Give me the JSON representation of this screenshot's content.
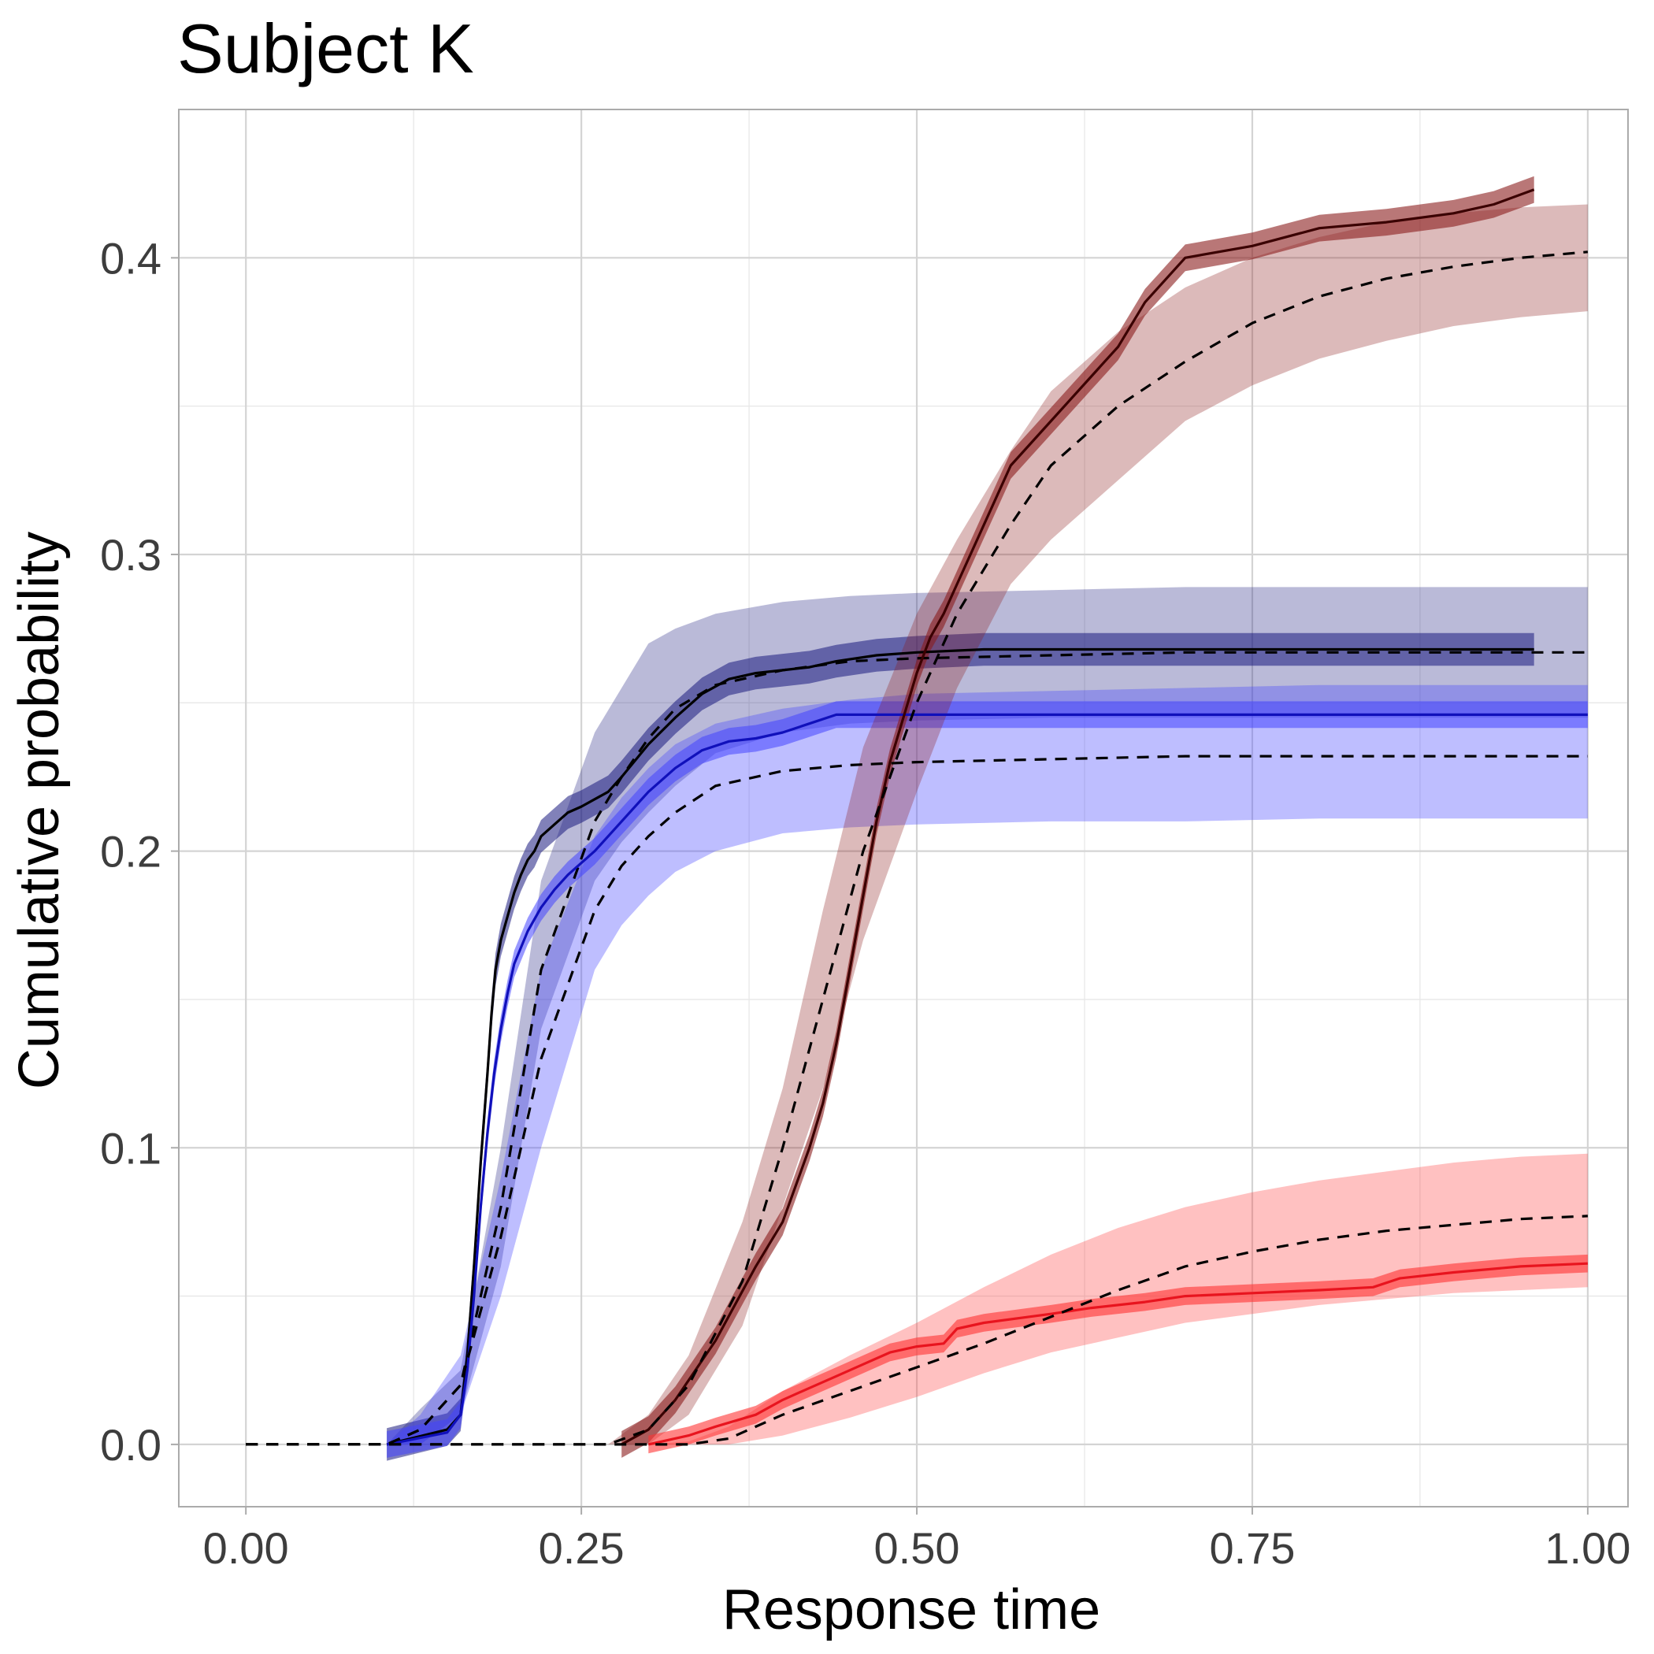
{
  "chart_data": {
    "type": "line",
    "title": "Subject K",
    "xlabel": "Response time",
    "ylabel": "Cumulative probability",
    "xlim": [
      -0.05,
      1.03
    ],
    "ylim": [
      -0.021,
      0.45
    ],
    "x_ticks": [
      0.0,
      0.25,
      0.5,
      0.75,
      1.0
    ],
    "x_tick_labels": [
      "0.00",
      "0.25",
      "0.50",
      "0.75",
      "1.00"
    ],
    "y_ticks": [
      0.0,
      0.1,
      0.2,
      0.3,
      0.4
    ],
    "y_tick_labels": [
      "0.0",
      "0.1",
      "0.2",
      "0.3",
      "0.4"
    ],
    "grid": true,
    "legend": "none",
    "colors": {
      "navy_band": "#1a1a7f",
      "blue_band": "#4444ff",
      "maroon_band": "#8b1c1c",
      "red_band": "#ff3333",
      "navy_line": "#000000",
      "blue_line": "#1010bb",
      "maroon_line": "#3a0000",
      "red_line": "#e8141e",
      "dashed_line": "#000000"
    },
    "series": [
      {
        "style": "observed",
        "color_key": "navy_band",
        "line_color_key": "navy_line",
        "band_opacity": 0.55,
        "band_width": 0.0055,
        "x": [
          0.105,
          0.15,
          0.16,
          0.165,
          0.17,
          0.175,
          0.18,
          0.183,
          0.186,
          0.19,
          0.195,
          0.2,
          0.205,
          0.21,
          0.215,
          0.22,
          0.23,
          0.24,
          0.25,
          0.27,
          0.28,
          0.3,
          0.32,
          0.34,
          0.36,
          0.38,
          0.4,
          0.42,
          0.44,
          0.47,
          0.5,
          0.55,
          0.6,
          0.7,
          0.8,
          0.96
        ],
        "y": [
          0.0,
          0.005,
          0.01,
          0.03,
          0.06,
          0.095,
          0.125,
          0.145,
          0.16,
          0.17,
          0.178,
          0.186,
          0.192,
          0.197,
          0.2,
          0.205,
          0.209,
          0.213,
          0.215,
          0.22,
          0.225,
          0.236,
          0.245,
          0.253,
          0.258,
          0.26,
          0.261,
          0.262,
          0.264,
          0.266,
          0.267,
          0.268,
          0.268,
          0.268,
          0.268,
          0.268
        ]
      },
      {
        "style": "model",
        "color_key": "navy_band",
        "band_opacity": 0.3,
        "x": [
          0.0,
          0.105,
          0.13,
          0.16,
          0.19,
          0.22,
          0.26,
          0.28,
          0.3,
          0.32,
          0.35,
          0.4,
          0.45,
          0.5,
          0.6,
          0.7,
          0.8,
          1.0
        ],
        "y": [
          0.0,
          0.0,
          0.005,
          0.02,
          0.08,
          0.16,
          0.21,
          0.225,
          0.238,
          0.248,
          0.256,
          0.261,
          0.264,
          0.265,
          0.266,
          0.267,
          0.267,
          0.267
        ],
        "lower": [
          0.0,
          0.0,
          0.0,
          0.01,
          0.06,
          0.14,
          0.19,
          0.203,
          0.213,
          0.222,
          0.233,
          0.24,
          0.243,
          0.244,
          0.245,
          0.245,
          0.245,
          0.245
        ],
        "upper": [
          0.0,
          0.0,
          0.012,
          0.025,
          0.1,
          0.19,
          0.24,
          0.255,
          0.27,
          0.275,
          0.28,
          0.284,
          0.286,
          0.287,
          0.288,
          0.289,
          0.289,
          0.289
        ]
      },
      {
        "style": "observed",
        "color_key": "blue_band",
        "line_color_key": "blue_line",
        "band_opacity": 0.55,
        "band_width": 0.0045,
        "x": [
          0.105,
          0.15,
          0.16,
          0.165,
          0.17,
          0.175,
          0.18,
          0.185,
          0.19,
          0.195,
          0.2,
          0.21,
          0.22,
          0.23,
          0.24,
          0.26,
          0.28,
          0.3,
          0.32,
          0.34,
          0.36,
          0.38,
          0.4,
          0.42,
          0.44,
          0.5,
          0.6,
          0.8,
          1.0
        ],
        "y": [
          0.0,
          0.004,
          0.01,
          0.025,
          0.05,
          0.08,
          0.105,
          0.125,
          0.14,
          0.152,
          0.162,
          0.173,
          0.181,
          0.187,
          0.192,
          0.2,
          0.21,
          0.22,
          0.228,
          0.234,
          0.237,
          0.238,
          0.24,
          0.243,
          0.246,
          0.246,
          0.246,
          0.246,
          0.246
        ]
      },
      {
        "style": "model",
        "color_key": "blue_band",
        "band_opacity": 0.35,
        "x": [
          0.0,
          0.105,
          0.13,
          0.16,
          0.19,
          0.22,
          0.26,
          0.28,
          0.3,
          0.32,
          0.35,
          0.4,
          0.45,
          0.5,
          0.6,
          0.7,
          0.8,
          1.0
        ],
        "y": [
          0.0,
          0.0,
          0.005,
          0.02,
          0.07,
          0.13,
          0.18,
          0.195,
          0.205,
          0.213,
          0.222,
          0.227,
          0.229,
          0.23,
          0.231,
          0.232,
          0.232,
          0.232
        ],
        "lower": [
          0.0,
          0.0,
          0.0,
          0.01,
          0.05,
          0.1,
          0.16,
          0.175,
          0.185,
          0.193,
          0.2,
          0.206,
          0.208,
          0.209,
          0.21,
          0.21,
          0.211,
          0.211
        ],
        "upper": [
          0.0,
          0.0,
          0.01,
          0.03,
          0.09,
          0.16,
          0.205,
          0.218,
          0.228,
          0.236,
          0.243,
          0.248,
          0.251,
          0.253,
          0.254,
          0.255,
          0.256,
          0.256
        ]
      },
      {
        "style": "observed",
        "color_key": "maroon_band",
        "line_color_key": "maroon_line",
        "band_opacity": 0.6,
        "band_width": 0.0045,
        "x": [
          0.28,
          0.3,
          0.32,
          0.35,
          0.38,
          0.4,
          0.42,
          0.43,
          0.44,
          0.45,
          0.46,
          0.47,
          0.48,
          0.49,
          0.5,
          0.51,
          0.52,
          0.53,
          0.55,
          0.57,
          0.6,
          0.63,
          0.65,
          0.67,
          0.7,
          0.75,
          0.8,
          0.85,
          0.9,
          0.93,
          0.96
        ],
        "y": [
          0.0,
          0.005,
          0.015,
          0.035,
          0.06,
          0.075,
          0.1,
          0.115,
          0.135,
          0.16,
          0.185,
          0.21,
          0.23,
          0.245,
          0.26,
          0.272,
          0.28,
          0.29,
          0.31,
          0.33,
          0.345,
          0.36,
          0.37,
          0.385,
          0.4,
          0.404,
          0.41,
          0.412,
          0.415,
          0.418,
          0.423
        ]
      },
      {
        "style": "model",
        "color_key": "maroon_band",
        "band_opacity": 0.3,
        "x": [
          0.0,
          0.27,
          0.3,
          0.33,
          0.37,
          0.4,
          0.43,
          0.46,
          0.5,
          0.53,
          0.57,
          0.6,
          0.65,
          0.7,
          0.75,
          0.8,
          0.85,
          0.9,
          0.95,
          1.0
        ],
        "y": [
          0.0,
          0.0,
          0.005,
          0.02,
          0.055,
          0.1,
          0.15,
          0.2,
          0.25,
          0.28,
          0.31,
          0.33,
          0.35,
          0.365,
          0.378,
          0.387,
          0.393,
          0.397,
          0.4,
          0.402
        ],
        "lower": [
          0.0,
          0.0,
          0.0,
          0.01,
          0.04,
          0.08,
          0.12,
          0.17,
          0.22,
          0.255,
          0.29,
          0.305,
          0.325,
          0.345,
          0.357,
          0.366,
          0.372,
          0.377,
          0.38,
          0.382
        ],
        "upper": [
          0.0,
          0.0,
          0.01,
          0.03,
          0.075,
          0.12,
          0.18,
          0.235,
          0.28,
          0.305,
          0.335,
          0.355,
          0.375,
          0.39,
          0.4,
          0.407,
          0.412,
          0.415,
          0.417,
          0.418
        ]
      },
      {
        "style": "observed",
        "color_key": "red_band",
        "line_color_key": "red_line",
        "band_opacity": 0.6,
        "band_width": 0.003,
        "x": [
          0.3,
          0.33,
          0.35,
          0.38,
          0.4,
          0.42,
          0.44,
          0.46,
          0.48,
          0.5,
          0.52,
          0.53,
          0.55,
          0.6,
          0.63,
          0.67,
          0.7,
          0.75,
          0.8,
          0.84,
          0.86,
          0.9,
          0.95,
          1.0
        ],
        "y": [
          0.0,
          0.003,
          0.006,
          0.01,
          0.015,
          0.019,
          0.023,
          0.027,
          0.031,
          0.033,
          0.034,
          0.039,
          0.041,
          0.044,
          0.046,
          0.048,
          0.05,
          0.051,
          0.052,
          0.053,
          0.056,
          0.058,
          0.06,
          0.061
        ]
      },
      {
        "style": "model",
        "color_key": "red_band",
        "band_opacity": 0.3,
        "x": [
          0.0,
          0.3,
          0.33,
          0.36,
          0.4,
          0.45,
          0.5,
          0.55,
          0.6,
          0.65,
          0.7,
          0.75,
          0.8,
          0.85,
          0.9,
          0.95,
          1.0
        ],
        "y": [
          0.0,
          0.0,
          0.0,
          0.002,
          0.01,
          0.018,
          0.026,
          0.034,
          0.043,
          0.052,
          0.06,
          0.065,
          0.069,
          0.072,
          0.074,
          0.076,
          0.077
        ],
        "lower": [
          0.0,
          0.0,
          0.0,
          0.0,
          0.003,
          0.009,
          0.016,
          0.024,
          0.031,
          0.036,
          0.041,
          0.044,
          0.047,
          0.049,
          0.051,
          0.052,
          0.053
        ],
        "upper": [
          0.0,
          0.0,
          0.001,
          0.006,
          0.018,
          0.03,
          0.041,
          0.053,
          0.064,
          0.073,
          0.08,
          0.085,
          0.089,
          0.092,
          0.095,
          0.097,
          0.098
        ]
      }
    ]
  }
}
